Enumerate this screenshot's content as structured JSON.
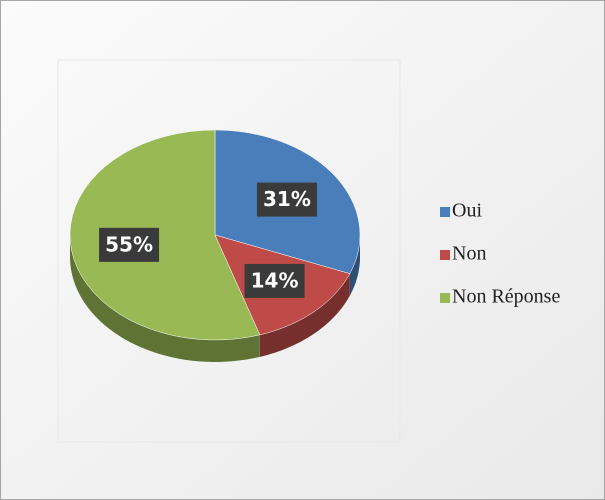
{
  "chart_data": {
    "type": "pie",
    "categories": [
      "Oui",
      "Non",
      "Non Réponse"
    ],
    "values": [
      31,
      14,
      55
    ],
    "value_labels": [
      "31%",
      "14%",
      "55%"
    ],
    "colors": [
      "#4a7ebb",
      "#be4b48",
      "#98b954"
    ],
    "legend": "right"
  }
}
